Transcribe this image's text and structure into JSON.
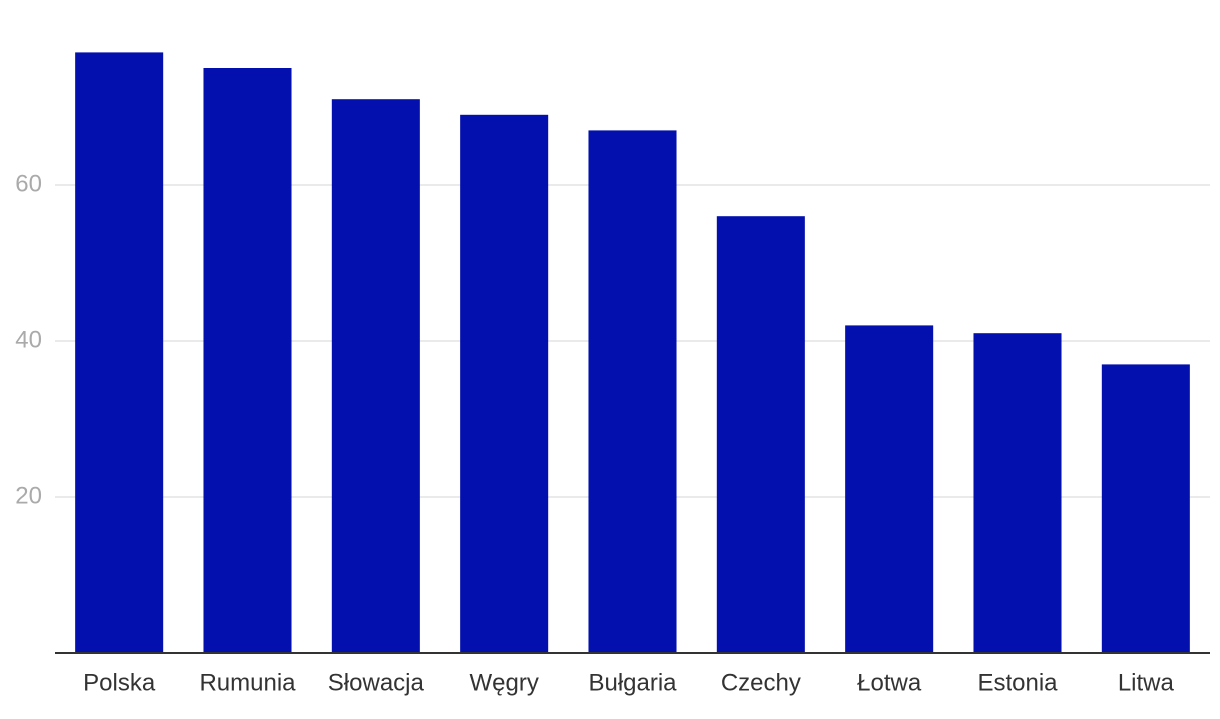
{
  "chart_data": {
    "type": "bar",
    "categories": [
      "Polska",
      "Rumunia",
      "Słowacja",
      "Węgry",
      "Bułgaria",
      "Czechy",
      "Łotwa",
      "Estonia",
      "Litwa"
    ],
    "values": [
      77,
      75,
      71,
      69,
      67,
      56,
      42,
      41,
      37
    ],
    "color": "#0310ad",
    "ylim": [
      0,
      80
    ],
    "yticks": [
      20,
      40,
      60
    ],
    "grid": true
  }
}
